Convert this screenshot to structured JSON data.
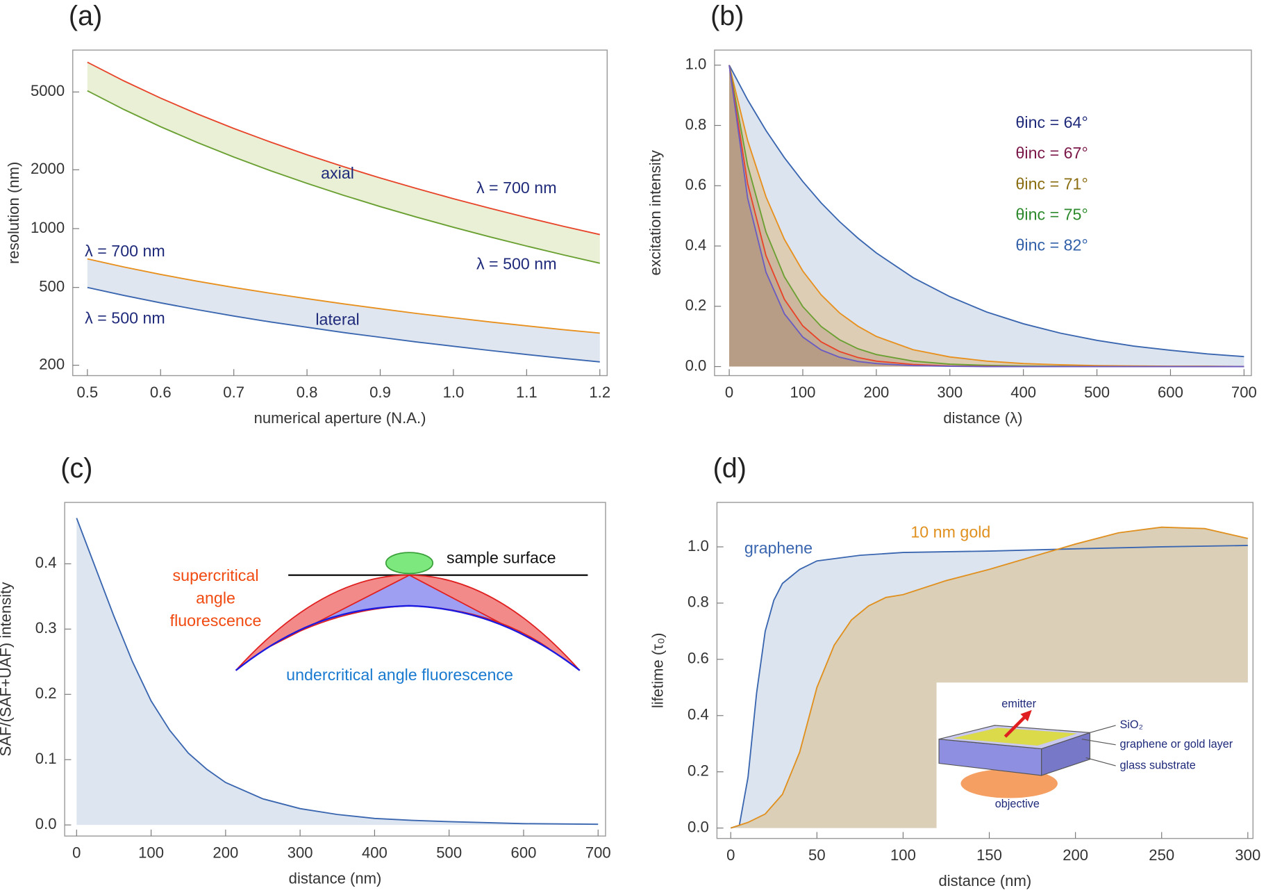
{
  "chart_data": [
    {
      "type": "line",
      "title": "(a)",
      "x_label": "numerical aperture (N.A.)",
      "y_label": "resolution (nm)",
      "log_y": true,
      "fill": "between-pairs",
      "x": [
        0.5,
        0.55,
        0.6,
        0.65,
        0.7,
        0.75,
        0.8,
        0.85,
        0.9,
        0.95,
        1.0,
        1.05,
        1.1,
        1.15,
        1.2
      ],
      "series": [
        {
          "name": "λ = 700 nm",
          "color": "#e8442a",
          "fill": "#e9f0d5",
          "label_color": "#1f2a7a",
          "values": [
            7100,
            5692,
            4651,
            3863,
            3253,
            2772,
            2386,
            2073,
            1815,
            1602,
            1422,
            1270,
            1140,
            1028,
            932
          ]
        },
        {
          "name": "λ = 500 nm",
          "color": "#6aa032",
          "label_color": "#1f2a7a",
          "values": [
            5070,
            4065,
            3321,
            2759,
            2323,
            1979,
            1704,
            1480,
            1296,
            1144,
            1016,
            907,
            814,
            734,
            665
          ]
        },
        {
          "name": "λ = 700 nm",
          "color": "#e8901e",
          "fill": "#dfe6f0",
          "label_color": "#1f2a7a",
          "values": [
            700,
            636,
            583,
            538,
            500,
            467,
            438,
            412,
            389,
            368,
            350,
            333,
            318,
            304,
            292
          ]
        },
        {
          "name": "λ = 500 nm",
          "color": "#3a66b0",
          "label_color": "#1f2a7a",
          "values": [
            500,
            455,
            417,
            385,
            357,
            333,
            313,
            294,
            278,
            263,
            250,
            238,
            227,
            217,
            208
          ]
        }
      ],
      "annotations": [
        "axial",
        "lateral"
      ],
      "xlim": [
        0.48,
        1.21
      ],
      "ylim": [
        177,
        8190
      ],
      "xticks": [
        0.5,
        0.6,
        0.7,
        0.8,
        0.9,
        {
          "value": 1,
          "label": "1.0"
        },
        1.1,
        1.2
      ],
      "yticks": [
        200,
        500,
        1000,
        2000,
        5000
      ]
    },
    {
      "type": "line",
      "title": "(b)",
      "x_label": "distance (λ)",
      "y_label": "excitation intensity",
      "fill": "to-zero",
      "x": [
        0,
        25,
        50,
        75,
        100,
        125,
        150,
        175,
        200,
        250,
        300,
        350,
        400,
        450,
        500,
        550,
        600,
        650,
        700
      ],
      "series": [
        {
          "name": "θinc = 64°",
          "color": "#3a66b0",
          "fill": "#dce4ef",
          "label_color": "#1f2a7a",
          "values": [
            1,
            0.885,
            0.783,
            0.693,
            0.614,
            0.543,
            0.481,
            0.426,
            0.377,
            0.295,
            0.232,
            0.181,
            0.142,
            0.111,
            0.087,
            0.068,
            0.054,
            0.042,
            0.033
          ]
        },
        {
          "name": "θinc = 67°",
          "color": "#e8901e",
          "fill": "#dccdb4",
          "label_color": "#7a1748",
          "values": [
            1,
            0.75,
            0.563,
            0.422,
            0.317,
            0.238,
            0.178,
            0.134,
            0.1,
            0.056,
            0.032,
            0.018,
            0.01,
            0.006,
            0.003,
            0.002,
            0.001,
            0.001,
            0
          ]
        },
        {
          "name": "θinc = 71°",
          "color": "#6aa032",
          "fill": "#cdb79f",
          "label_color": "#8a6d10",
          "values": [
            1,
            0.668,
            0.446,
            0.298,
            0.199,
            0.133,
            0.089,
            0.059,
            0.04,
            0.018,
            0.008,
            0.004,
            0.002,
            0.001,
            0,
            0,
            0,
            0,
            0
          ]
        },
        {
          "name": "θinc = 75°",
          "color": "#e8442a",
          "fill": "#c4aa92",
          "label_color": "#2c8a2c",
          "values": [
            1,
            0.607,
            0.368,
            0.223,
            0.135,
            0.082,
            0.05,
            0.03,
            0.018,
            0.007,
            0.002,
            0.001,
            0,
            0,
            0,
            0,
            0,
            0,
            0
          ]
        },
        {
          "name": "θinc = 82°",
          "color": "#6a5cc0",
          "fill": "#b89d86",
          "label_color": "#3160a8",
          "values": [
            1,
            0.559,
            0.313,
            0.175,
            0.098,
            0.055,
            0.031,
            0.017,
            0.01,
            0.003,
            0.001,
            0,
            0,
            0,
            0,
            0,
            0,
            0,
            0
          ]
        }
      ],
      "xlim": [
        -20,
        710
      ],
      "ylim": [
        -0.03,
        1.05
      ],
      "xticks": [
        0,
        100,
        200,
        300,
        400,
        500,
        600,
        700
      ],
      "yticks": [
        {
          "value": 0,
          "label": "0.0"
        },
        0.2,
        0.4,
        0.6,
        0.8,
        {
          "value": 1,
          "label": "1.0"
        }
      ]
    },
    {
      "type": "line",
      "title": "(c)",
      "x_label": "distance (nm)",
      "y_label": "SAF/(SAF+UAF) intensity",
      "fill": "to-zero",
      "x": [
        0,
        25,
        50,
        75,
        100,
        125,
        150,
        175,
        200,
        250,
        300,
        350,
        400,
        450,
        500,
        600,
        700
      ],
      "series": [
        {
          "color": "#3a66b0",
          "fill": "#dde5f0",
          "values": [
            0.47,
            0.395,
            0.32,
            0.25,
            0.19,
            0.145,
            0.11,
            0.085,
            0.065,
            0.04,
            0.025,
            0.016,
            0.01,
            0.007,
            0.005,
            0.002,
            0.001
          ]
        }
      ],
      "annotations": [
        "sample surface",
        "supercritical",
        "angle",
        "fluorescence",
        "undercritical angle fluorescence"
      ],
      "xlim": [
        -16,
        710
      ],
      "ylim": [
        -0.017,
        0.494
      ],
      "xticks": [
        0,
        100,
        200,
        300,
        400,
        500,
        600,
        700
      ],
      "yticks": [
        {
          "value": 0,
          "label": "0.0"
        },
        0.1,
        0.2,
        0.3,
        0.4
      ]
    },
    {
      "type": "line",
      "title": "(d)",
      "x_label": "distance (nm)",
      "y_label": "lifetime (τ₀)",
      "fill": "to-zero",
      "series": [
        {
          "name": "graphene",
          "color": "#3a66b0",
          "fill": "#dce4ef",
          "x": [
            0,
            5,
            10,
            15,
            20,
            25,
            30,
            40,
            50,
            75,
            100,
            150,
            200,
            250,
            300
          ],
          "values": [
            0,
            0.01,
            0.18,
            0.48,
            0.7,
            0.81,
            0.87,
            0.92,
            0.95,
            0.97,
            0.98,
            0.985,
            0.993,
            1,
            1.005
          ]
        },
        {
          "name": "10 nm gold",
          "color": "#e0901e",
          "fill": "#dccfb8",
          "x": [
            0,
            10,
            20,
            30,
            40,
            50,
            60,
            70,
            80,
            90,
            100,
            125,
            150,
            175,
            200,
            225,
            250,
            275,
            300
          ],
          "values": [
            0,
            0.02,
            0.05,
            0.12,
            0.27,
            0.5,
            0.65,
            0.74,
            0.79,
            0.82,
            0.83,
            0.88,
            0.92,
            0.965,
            1.01,
            1.05,
            1.07,
            1.065,
            1.03
          ]
        }
      ],
      "annotations": [
        "emitter",
        "SiO₂",
        "graphene or gold layer",
        "glass substrate",
        "objective"
      ],
      "xlim": [
        -8,
        303
      ],
      "ylim": [
        -0.037,
        1.158
      ],
      "xticks": [
        0,
        50,
        100,
        150,
        200,
        250,
        300
      ],
      "yticks": [
        {
          "value": 0,
          "label": "0.0"
        },
        0.2,
        0.4,
        0.6,
        0.8,
        {
          "value": 1,
          "label": "1.0"
        }
      ]
    }
  ]
}
